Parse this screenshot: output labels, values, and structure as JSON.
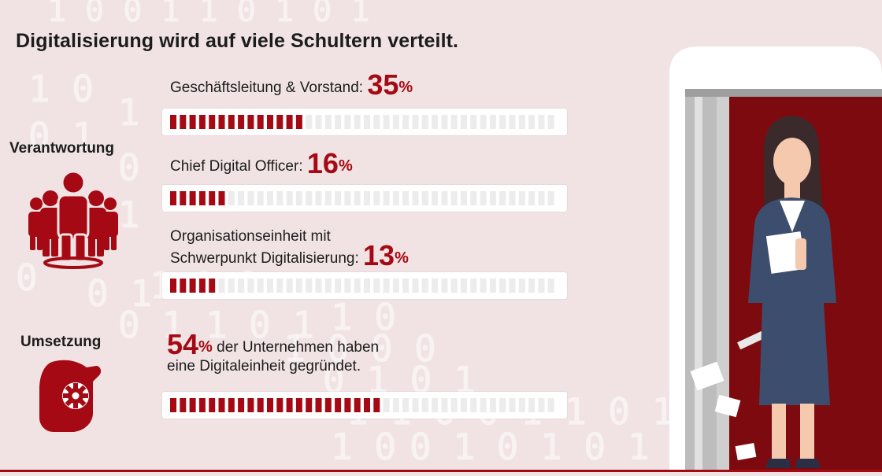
{
  "title": "Digitalisierung wird auf viele Schultern verteilt.",
  "sections": {
    "verantwortung": "Verantwortung",
    "umsetzung": "Umsetzung"
  },
  "colors": {
    "accent": "#a50a14",
    "background": "#f1e3e4",
    "bar_empty": "#ececec"
  },
  "rows": [
    {
      "label": "Geschäftsleitung & Vorstand:",
      "value": "35",
      "unit": "%"
    },
    {
      "label": "Chief Digital Officer:",
      "value": "16",
      "unit": "%"
    },
    {
      "label_line1": "Organisationseinheit mit",
      "label_line2": "Schwerpunkt Digitalisierung:",
      "value": "13",
      "unit": "%"
    },
    {
      "value": "54",
      "unit": "%",
      "text_line1": " der Unternehmen haben",
      "text_line2": "eine Digitaleinheit gegründet."
    }
  ],
  "chart_data": {
    "type": "bar",
    "title": "Digitalisierung wird auf viele Schultern verteilt.",
    "categories": [
      "Geschäftsleitung & Vorstand",
      "Chief Digital Officer",
      "Organisationseinheit mit Schwerpunkt Digitalisierung",
      "Unternehmen mit Digitaleinheit"
    ],
    "values": [
      35,
      16,
      13,
      54
    ],
    "unit": "%",
    "ylim": [
      0,
      100
    ],
    "groups": [
      "Verantwortung",
      "Verantwortung",
      "Verantwortung",
      "Umsetzung"
    ]
  }
}
